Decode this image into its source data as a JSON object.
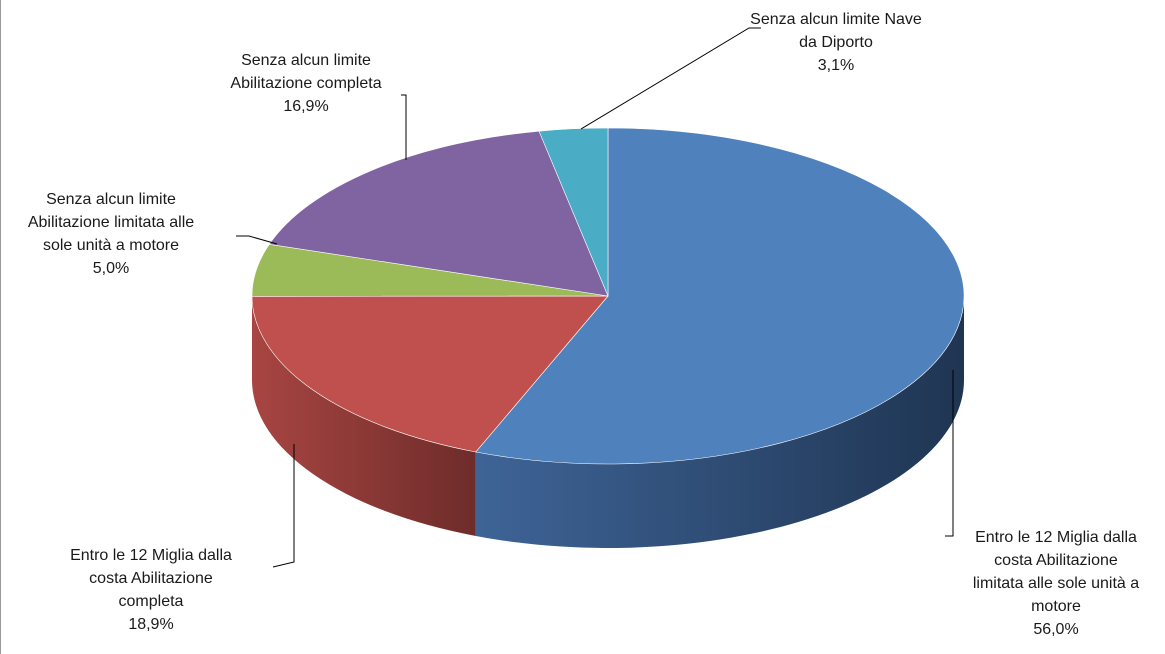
{
  "chart_data": {
    "type": "pie",
    "title": "",
    "style": "3d-exploded-none",
    "start_angle_deg": 90,
    "direction": "clockwise",
    "slices": [
      {
        "label": [
          "Entro le 12 Miglia dalla",
          "costa Abilitazione",
          "limitata alle sole unità a",
          "motore"
        ],
        "value": 56.0,
        "value_label": "56,0%",
        "color": "#4F81BD",
        "side_dark": "#1F3552",
        "side_light": "#3E6497"
      },
      {
        "label": [
          "Entro le 12 Miglia dalla",
          "costa Abilitazione",
          "completa"
        ],
        "value": 18.9,
        "value_label": "18,9%",
        "color": "#C0504D",
        "side_dark": "#6E2C2A",
        "side_light": "#A84542"
      },
      {
        "label": [
          "Senza alcun limite",
          "Abilitazione limitata alle",
          "sole unità a motore"
        ],
        "value": 5.0,
        "value_label": "5,0%",
        "color": "#9BBB59",
        "side_dark": "#5A6E33",
        "side_light": "#86A24C"
      },
      {
        "label": [
          "Senza alcun limite",
          "Abilitazione completa"
        ],
        "value": 16.9,
        "value_label": "16,9%",
        "color": "#8064A2",
        "side_dark": "#4A3A5E",
        "side_light": "#6E568C"
      },
      {
        "label": [
          "Senza alcun limite Nave",
          "da Diporto"
        ],
        "value": 3.1,
        "value_label": "3,1%",
        "color": "#4BACC6",
        "side_dark": "#2A6373",
        "side_light": "#4095AB"
      }
    ]
  }
}
